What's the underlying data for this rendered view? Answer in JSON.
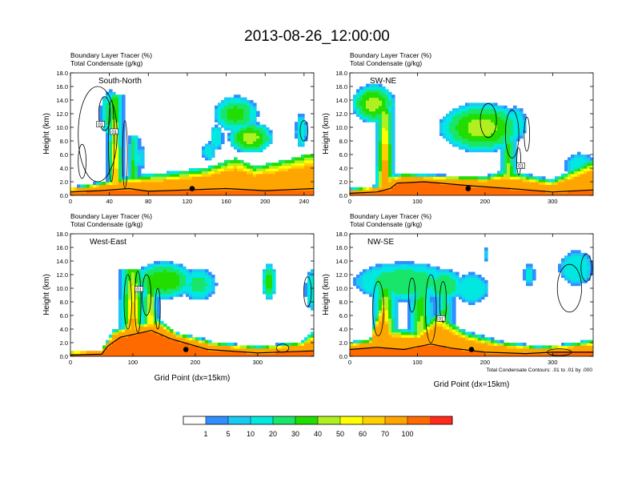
{
  "title": "2013-08-26_12:00:00",
  "field_titles": [
    "Boundary Layer Tracer   (%)",
    "Total Condensate   (g/kg)"
  ],
  "y_axis_label": "Height (km)",
  "x_axis_label": "Grid Point (dx=15km)",
  "contour_note": "Total Condensate Contours: .01 to .01 by .000",
  "contour_label": "01",
  "colorbar": {
    "levels": [
      "1",
      "5",
      "10",
      "20",
      "30",
      "40",
      "50",
      "60",
      "70",
      "100"
    ],
    "colors": [
      "#ffffff",
      "#2f8fff",
      "#1cc8f4",
      "#00e8e0",
      "#18e66a",
      "#22dd00",
      "#b0f020",
      "#ffff00",
      "#ffd000",
      "#ffa500",
      "#ff6a00",
      "#ff2a1a"
    ]
  },
  "chart_data": [
    {
      "type": "heatmap",
      "name": "South-North",
      "title_lines": [
        "Boundary Layer Tracer   (%)",
        "Total Condensate   (g/kg)"
      ],
      "xlim": [
        0,
        250
      ],
      "xticks": [
        "0",
        "40",
        "80",
        "120",
        "160",
        "200",
        "240"
      ],
      "ylim": [
        0,
        18
      ],
      "yticks": [
        "0.0",
        "2.0",
        "4.0",
        "6.0",
        "8.0",
        "10.0",
        "12.0",
        "14.0",
        "16.0",
        "18.0"
      ],
      "ylabel": "Height (km)",
      "xlabel": "",
      "marker": {
        "x": 125,
        "y": 1
      },
      "terrain": [
        [
          0,
          0.5
        ],
        [
          30,
          0.7
        ],
        [
          60,
          1.0
        ],
        [
          80,
          0.6
        ],
        [
          120,
          0.8
        ],
        [
          160,
          1.0
        ],
        [
          200,
          0.7
        ],
        [
          250,
          1.0
        ]
      ],
      "bl_top": [
        [
          0,
          1.0
        ],
        [
          30,
          1.6
        ],
        [
          60,
          2.3
        ],
        [
          100,
          2.7
        ],
        [
          140,
          3.4
        ],
        [
          170,
          4.8
        ],
        [
          190,
          3.6
        ],
        [
          220,
          4.5
        ],
        [
          250,
          5.5
        ]
      ],
      "plumes": [
        {
          "x": 46,
          "top": 15,
          "w": 6,
          "bottom_peak": 80
        },
        {
          "x": 65,
          "top": 9,
          "w": 4,
          "bottom_peak": 50
        },
        {
          "x": 250,
          "top": 6,
          "w": 6,
          "bottom_peak": 40
        }
      ],
      "clouds": [
        {
          "x": 42,
          "y": 12,
          "rx": 10,
          "ry": 3,
          "peak": 30
        },
        {
          "x": 170,
          "y": 12,
          "rx": 20,
          "ry": 2.3,
          "peak": 35
        },
        {
          "x": 150,
          "y": 8.5,
          "rx": 6,
          "ry": 1.6,
          "peak": 20
        },
        {
          "x": 185,
          "y": 8.5,
          "rx": 20,
          "ry": 2.0,
          "peak": 45
        },
        {
          "x": 237,
          "y": 9.5,
          "rx": 5,
          "ry": 2.2,
          "peak": 20
        },
        {
          "x": 142,
          "y": 6.5,
          "rx": 6,
          "ry": 1.2,
          "peak": 15
        },
        {
          "x": 72,
          "y": 5.5,
          "rx": 4,
          "ry": 1.5,
          "peak": 12
        }
      ],
      "contours": [
        {
          "x": 28,
          "y": 9,
          "rx": 20,
          "ry": 7
        },
        {
          "x": 35,
          "y": 12,
          "rx": 6,
          "ry": 2.5
        },
        {
          "x": 42,
          "y": 8,
          "rx": 3,
          "ry": 6
        },
        {
          "x": 56,
          "y": 6,
          "rx": 2.5,
          "ry": 5
        },
        {
          "x": 12,
          "y": 5,
          "rx": 4,
          "ry": 2.5
        },
        {
          "x": 240,
          "y": 9.5,
          "rx": 4,
          "ry": 1.5
        }
      ],
      "contour_labels": [
        {
          "x": 31,
          "y": 10.4
        },
        {
          "x": 45,
          "y": 9.3
        }
      ]
    },
    {
      "type": "heatmap",
      "name": "SW-NE",
      "title_lines": [
        "Boundary Layer Tracer   (%)",
        "Total Condensate   (g/kg)"
      ],
      "xlim": [
        0,
        360
      ],
      "xticks": [
        "0",
        "100",
        "200",
        "300"
      ],
      "ylim": [
        0,
        18
      ],
      "yticks": [
        "0.0",
        "2.0",
        "4.0",
        "6.0",
        "8.0",
        "10.0",
        "12.0",
        "14.0",
        "16.0",
        "18.0"
      ],
      "ylabel": "Height (km)",
      "xlabel": "",
      "marker": {
        "x": 175,
        "y": 1
      },
      "terrain": [
        [
          0,
          0.3
        ],
        [
          40,
          0.5
        ],
        [
          60,
          1.0
        ],
        [
          70,
          1.8
        ],
        [
          110,
          2.0
        ],
        [
          180,
          1.4
        ],
        [
          250,
          0.9
        ],
        [
          300,
          0.5
        ],
        [
          360,
          0.8
        ]
      ],
      "bl_top": [
        [
          0,
          0.8
        ],
        [
          40,
          1.2
        ],
        [
          60,
          2.5
        ],
        [
          80,
          2.9
        ],
        [
          150,
          2.6
        ],
        [
          200,
          2.4
        ],
        [
          230,
          3.0
        ],
        [
          260,
          2.5
        ],
        [
          300,
          1.8
        ],
        [
          360,
          4.5
        ]
      ],
      "plumes": [
        {
          "x": 52,
          "top": 13,
          "w": 10,
          "bottom_peak": 100
        },
        {
          "x": 235,
          "top": 9,
          "w": 9,
          "bottom_peak": 60
        }
      ],
      "clouds": [
        {
          "x": 35,
          "y": 13.5,
          "rx": 28,
          "ry": 2.5,
          "peak": 45
        },
        {
          "x": 195,
          "y": 10,
          "rx": 55,
          "ry": 3.2,
          "peak": 45
        },
        {
          "x": 245,
          "y": 10.5,
          "rx": 14,
          "ry": 2.2,
          "peak": 20
        },
        {
          "x": 340,
          "y": 4.5,
          "rx": 20,
          "ry": 1.5,
          "peak": 15
        }
      ],
      "contours": [
        {
          "x": 205,
          "y": 11,
          "rx": 12,
          "ry": 2.5
        },
        {
          "x": 240,
          "y": 9,
          "rx": 10,
          "ry": 3.5
        },
        {
          "x": 262,
          "y": 9,
          "rx": 4,
          "ry": 2.5
        },
        {
          "x": 250,
          "y": 5,
          "rx": 3,
          "ry": 2
        }
      ],
      "contour_labels": [
        {
          "x": 253,
          "y": 4.3
        }
      ]
    },
    {
      "type": "heatmap",
      "name": "West-East",
      "title_lines": [
        "Boundary Layer Tracer   (%)",
        "Total Condensate   (g/kg)"
      ],
      "xlim": [
        0,
        390
      ],
      "xticks": [
        "0",
        "100",
        "200",
        "300"
      ],
      "ylim": [
        0,
        18
      ],
      "yticks": [
        "0.0",
        "2.0",
        "4.0",
        "6.0",
        "8.0",
        "10.0",
        "12.0",
        "14.0",
        "16.0",
        "18.0"
      ],
      "ylabel": "Height (km)",
      "xlabel": "Grid Point (dx=15km)",
      "marker": {
        "x": 185,
        "y": 1
      },
      "terrain": [
        [
          0,
          0.2
        ],
        [
          50,
          0.3
        ],
        [
          60,
          1.5
        ],
        [
          80,
          2.8
        ],
        [
          130,
          3.8
        ],
        [
          160,
          2.6
        ],
        [
          220,
          1.0
        ],
        [
          300,
          0.5
        ],
        [
          390,
          0.8
        ]
      ],
      "bl_top": [
        [
          0,
          0.6
        ],
        [
          50,
          0.8
        ],
        [
          70,
          3.5
        ],
        [
          95,
          4.2
        ],
        [
          140,
          5.0
        ],
        [
          170,
          3.2
        ],
        [
          230,
          1.8
        ],
        [
          300,
          1.2
        ],
        [
          370,
          1.8
        ],
        [
          390,
          3.0
        ]
      ],
      "plumes": [
        {
          "x": 100,
          "top": 13,
          "w": 16,
          "bottom_peak": 95
        },
        {
          "x": 128,
          "top": 12,
          "w": 10,
          "bottom_peak": 80
        }
      ],
      "clouds": [
        {
          "x": 150,
          "y": 11.2,
          "rx": 42,
          "ry": 2.4,
          "peak": 40
        },
        {
          "x": 205,
          "y": 10.6,
          "rx": 25,
          "ry": 2.0,
          "peak": 25
        },
        {
          "x": 318,
          "y": 11,
          "rx": 10,
          "ry": 2.3,
          "peak": 35
        },
        {
          "x": 388,
          "y": 9.8,
          "rx": 10,
          "ry": 2.8,
          "peak": 20
        }
      ],
      "contours": [
        {
          "x": 92,
          "y": 8,
          "rx": 6,
          "ry": 4
        },
        {
          "x": 108,
          "y": 8,
          "rx": 5,
          "ry": 4.5
        },
        {
          "x": 122,
          "y": 9,
          "rx": 7,
          "ry": 3
        },
        {
          "x": 140,
          "y": 7,
          "rx": 4,
          "ry": 3
        },
        {
          "x": 380,
          "y": 9.5,
          "rx": 6,
          "ry": 2.2
        },
        {
          "x": 340,
          "y": 1.2,
          "rx": 10,
          "ry": 0.6
        }
      ],
      "contour_labels": [
        {
          "x": 110,
          "y": 9.8
        }
      ]
    },
    {
      "type": "heatmap",
      "name": "NW-SE",
      "title_lines": [
        "Boundary Layer Tracer   (%)",
        "Total Condensate   (g/kg)"
      ],
      "xlim": [
        0,
        360
      ],
      "xticks": [
        "0",
        "100",
        "200",
        "300"
      ],
      "ylim": [
        0,
        18
      ],
      "yticks": [
        "0.0",
        "2.0",
        "4.0",
        "6.0",
        "8.0",
        "10.0",
        "12.0",
        "14.0",
        "16.0",
        "18.0"
      ],
      "ylabel": "Height (km)",
      "xlabel": "Grid Point (dx=15km)",
      "marker": {
        "x": 180,
        "y": 1
      },
      "terrain": [
        [
          0,
          1.0
        ],
        [
          40,
          1.3
        ],
        [
          80,
          1.0
        ],
        [
          120,
          1.8
        ],
        [
          150,
          1.2
        ],
        [
          200,
          0.6
        ],
        [
          260,
          0.4
        ],
        [
          300,
          0.6
        ],
        [
          360,
          0.6
        ]
      ],
      "bl_top": [
        [
          0,
          1.8
        ],
        [
          30,
          2.2
        ],
        [
          50,
          8.0
        ],
        [
          60,
          3.5
        ],
        [
          100,
          3.0
        ],
        [
          130,
          5.5
        ],
        [
          170,
          3.0
        ],
        [
          220,
          1.8
        ],
        [
          280,
          1.2
        ],
        [
          330,
          1.6
        ],
        [
          360,
          2.0
        ]
      ],
      "plumes": [
        {
          "x": 52,
          "top": 10,
          "w": 14,
          "bottom_peak": 90
        },
        {
          "x": 105,
          "top": 11,
          "w": 14,
          "bottom_peak": 60
        },
        {
          "x": 140,
          "top": 10,
          "w": 10,
          "bottom_peak": 50
        }
      ],
      "clouds": [
        {
          "x": 80,
          "y": 11,
          "rx": 65,
          "ry": 2.5,
          "peak": 30
        },
        {
          "x": 140,
          "y": 10.5,
          "rx": 25,
          "ry": 2.0,
          "peak": 30
        },
        {
          "x": 180,
          "y": 10,
          "rx": 22,
          "ry": 2.0,
          "peak": 20
        },
        {
          "x": 335,
          "y": 13,
          "rx": 22,
          "ry": 2.2,
          "peak": 20
        },
        {
          "x": 265,
          "y": 12,
          "rx": 7,
          "ry": 1.4,
          "peak": 15
        },
        {
          "x": 200,
          "y": 15,
          "rx": 2.5,
          "ry": 1.0,
          "peak": 10
        }
      ],
      "contours": [
        {
          "x": 42,
          "y": 7,
          "rx": 8,
          "ry": 4
        },
        {
          "x": 92,
          "y": 9,
          "rx": 5,
          "ry": 2.5
        },
        {
          "x": 120,
          "y": 7,
          "rx": 8,
          "ry": 5
        },
        {
          "x": 138,
          "y": 8,
          "rx": 5,
          "ry": 3
        },
        {
          "x": 325,
          "y": 10,
          "rx": 18,
          "ry": 3.5
        },
        {
          "x": 350,
          "y": 13,
          "rx": 8,
          "ry": 2
        },
        {
          "x": 310,
          "y": 0.6,
          "rx": 18,
          "ry": 0.5
        }
      ],
      "contour_labels": [
        {
          "x": 135,
          "y": 5.5
        }
      ]
    }
  ]
}
